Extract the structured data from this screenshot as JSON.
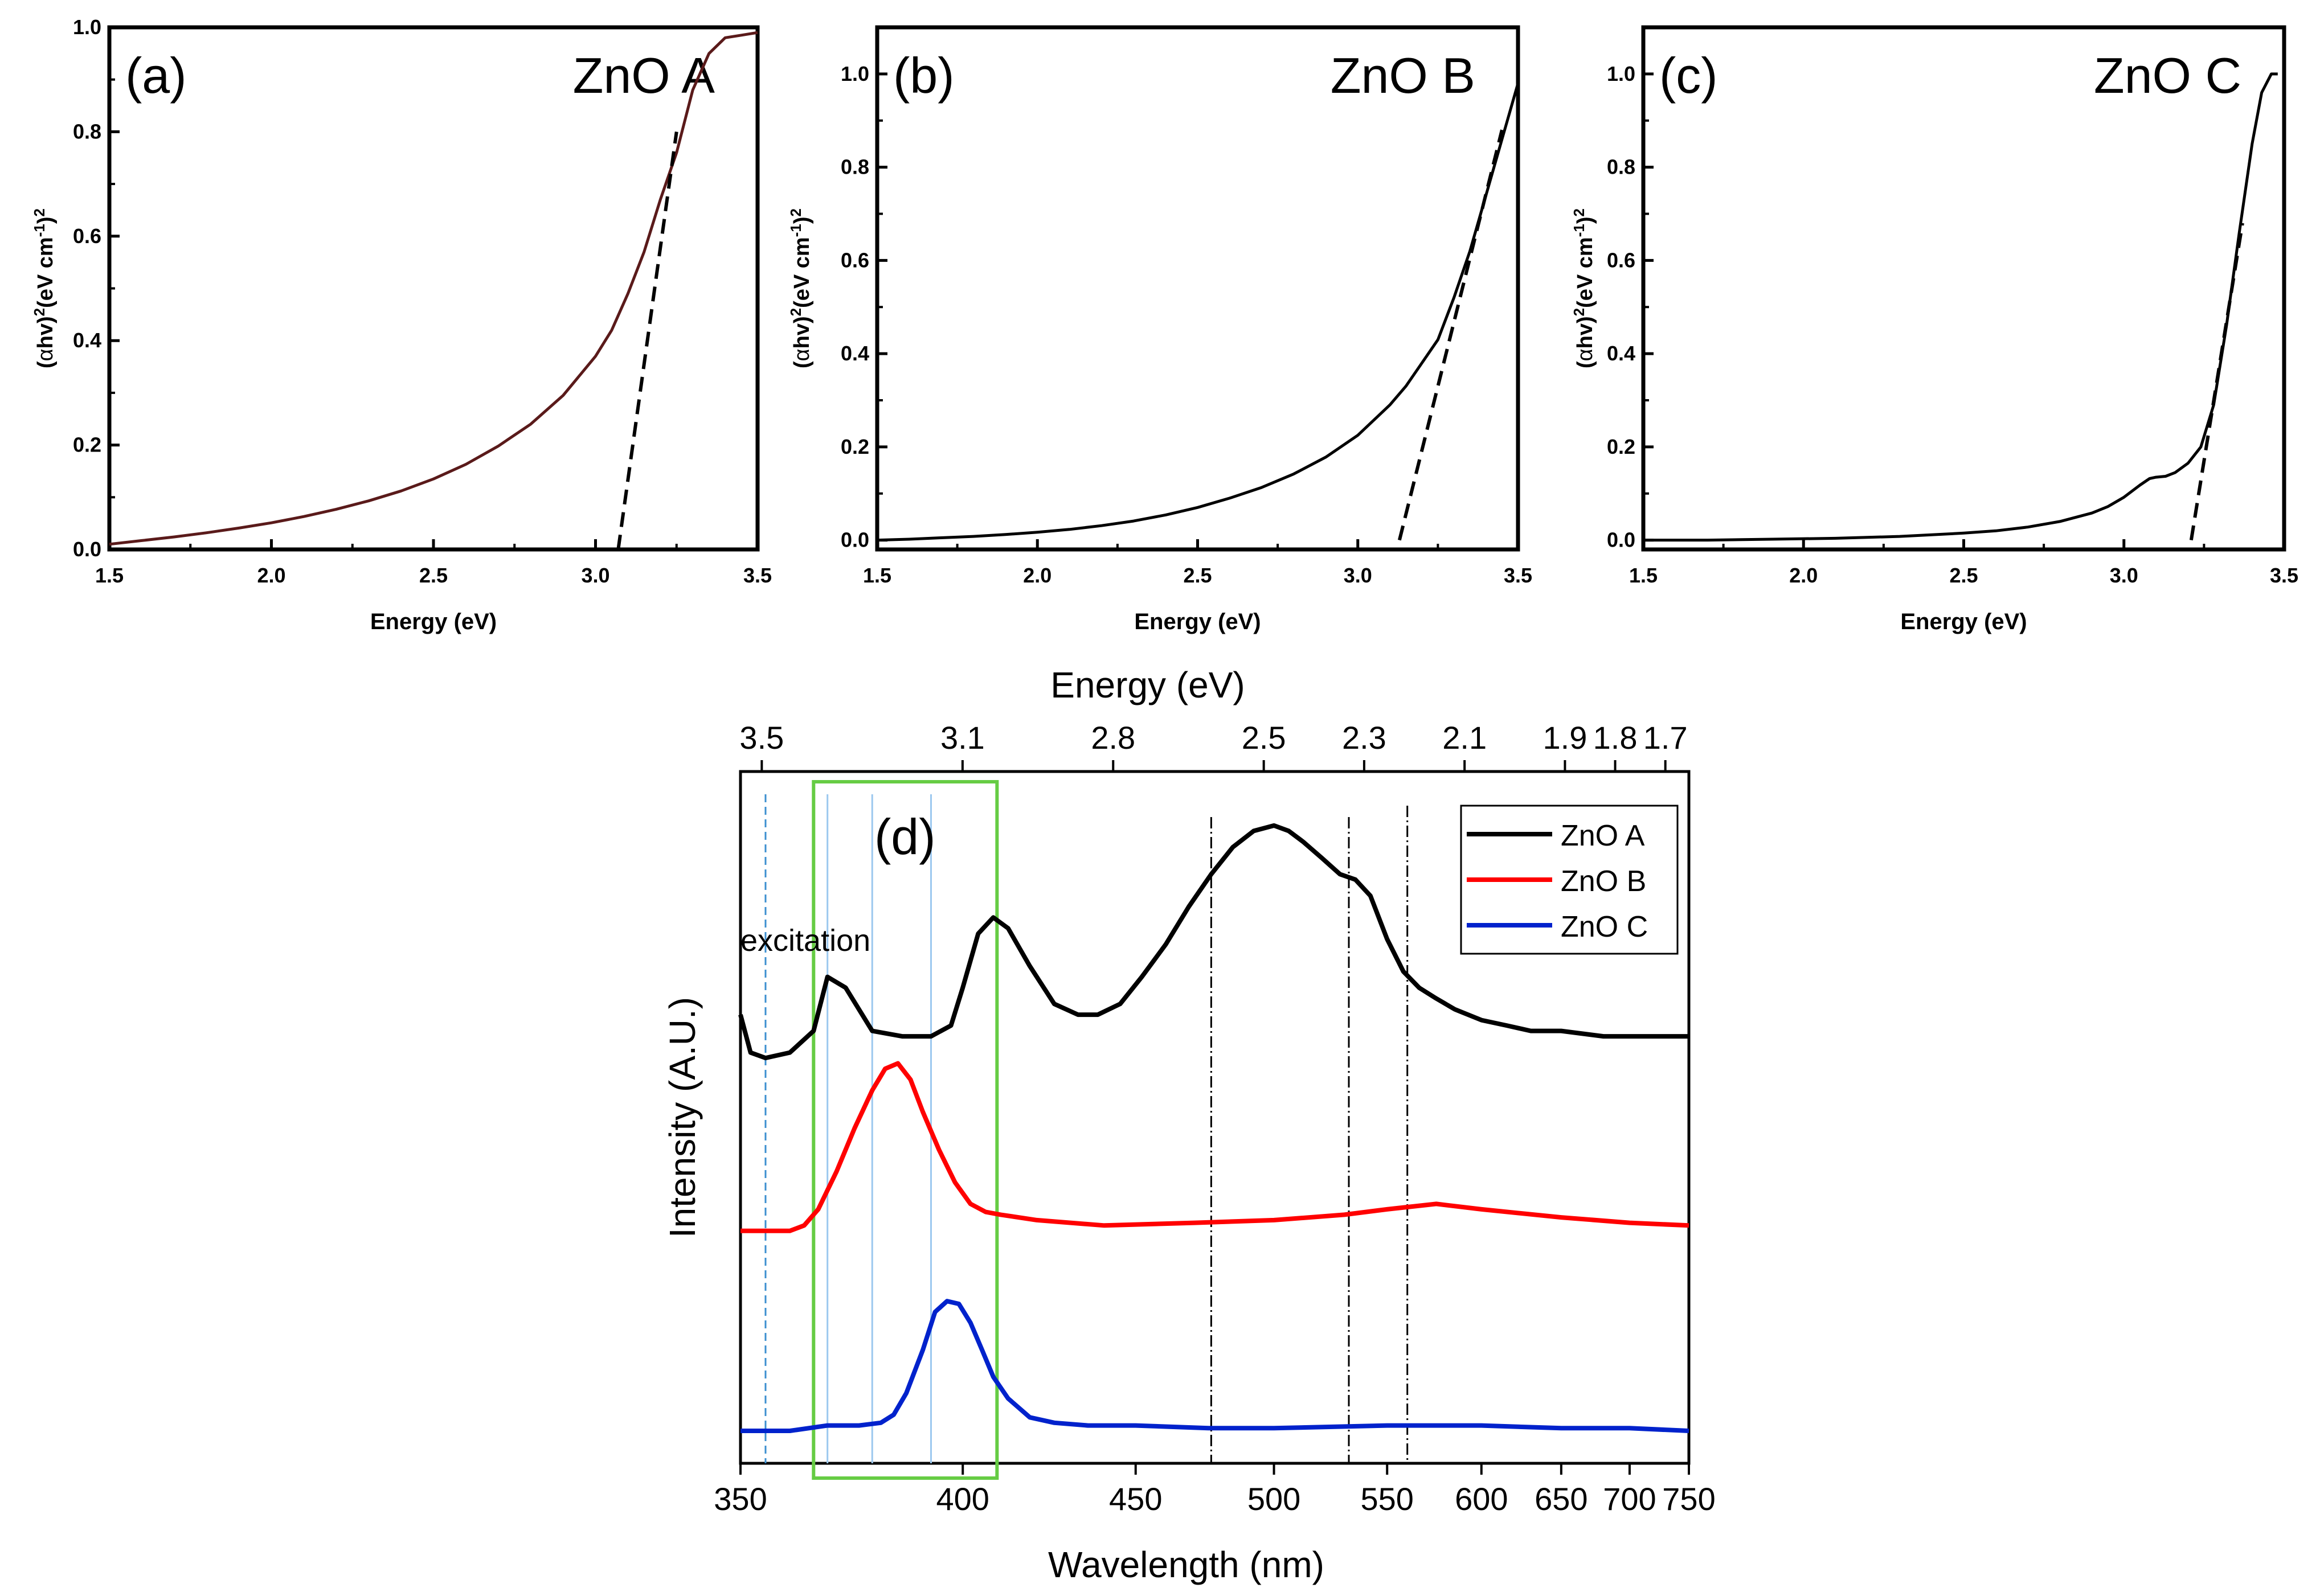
{
  "chart_data": [
    {
      "type": "line",
      "panel": "(a)",
      "title": "ZnO A",
      "xlabel": "Energy (eV)",
      "ylabel_parts": [
        "(",
        "α",
        "hv)",
        "2",
        "(eV cm",
        "-1",
        ")",
        "2"
      ],
      "xlim": [
        1.5,
        3.5
      ],
      "ylim": [
        0,
        1.0
      ],
      "xticks": [
        "1.5",
        "2.0",
        "2.5",
        "3.0",
        "3.5"
      ],
      "yticks": [
        "0.0",
        "0.2",
        "0.4",
        "0.6",
        "0.8",
        "1.0"
      ],
      "series": [
        {
          "name": "ZnO A",
          "color": "#5a1a1a",
          "x": [
            1.5,
            1.6,
            1.7,
            1.8,
            1.9,
            2.0,
            2.1,
            2.2,
            2.3,
            2.4,
            2.5,
            2.6,
            2.7,
            2.8,
            2.9,
            3.0,
            3.05,
            3.1,
            3.15,
            3.2,
            3.25,
            3.3,
            3.35,
            3.4,
            3.45,
            3.5
          ],
          "y": [
            0.01,
            0.017,
            0.024,
            0.032,
            0.041,
            0.051,
            0.063,
            0.077,
            0.093,
            0.112,
            0.135,
            0.163,
            0.198,
            0.24,
            0.295,
            0.37,
            0.42,
            0.49,
            0.57,
            0.67,
            0.76,
            0.88,
            0.95,
            0.98,
            0.985,
            0.99
          ]
        }
      ],
      "tangent": {
        "x": [
          3.07,
          3.25
        ],
        "y": [
          0.0,
          0.8
        ]
      }
    },
    {
      "type": "line",
      "panel": "(b)",
      "title": "ZnO B",
      "xlabel": "Energy (eV)",
      "ylabel_parts": [
        "(",
        "α",
        "hv)",
        "2",
        "(eV cm",
        "-1",
        ")",
        "2"
      ],
      "xlim": [
        1.5,
        3.5
      ],
      "ylim": [
        -0.02,
        1.1
      ],
      "xticks": [
        "1.5",
        "2.0",
        "2.5",
        "3.0",
        "3.5"
      ],
      "yticks": [
        "0.0",
        "0.2",
        "0.4",
        "0.6",
        "0.8",
        "1.0"
      ],
      "series": [
        {
          "name": "ZnO B",
          "color": "#000000",
          "x": [
            1.5,
            1.6,
            1.7,
            1.8,
            1.9,
            2.0,
            2.1,
            2.2,
            2.3,
            2.4,
            2.5,
            2.6,
            2.7,
            2.8,
            2.9,
            3.0,
            3.1,
            3.15,
            3.2,
            3.25,
            3.3,
            3.35,
            3.4,
            3.45,
            3.5
          ],
          "y": [
            0.0,
            0.002,
            0.005,
            0.008,
            0.012,
            0.017,
            0.023,
            0.031,
            0.041,
            0.054,
            0.07,
            0.09,
            0.113,
            0.142,
            0.178,
            0.225,
            0.29,
            0.33,
            0.38,
            0.43,
            0.52,
            0.62,
            0.74,
            0.86,
            0.98
          ]
        }
      ],
      "tangent": {
        "x": [
          3.13,
          3.45
        ],
        "y": [
          0.0,
          0.88
        ]
      }
    },
    {
      "type": "line",
      "panel": "(c)",
      "title": "ZnO C",
      "xlabel": "Energy (eV)",
      "ylabel_parts": [
        "(",
        "α",
        "hv)",
        "2",
        "(eV cm",
        "-1",
        ")",
        "2"
      ],
      "xlim": [
        1.5,
        3.5
      ],
      "ylim": [
        -0.02,
        1.1
      ],
      "xticks": [
        "1.5",
        "2.0",
        "2.5",
        "3.0",
        "3.5"
      ],
      "yticks": [
        "0.0",
        "0.2",
        "0.4",
        "0.6",
        "0.8",
        "1.0"
      ],
      "series": [
        {
          "name": "ZnO C",
          "color": "#000000",
          "x": [
            1.5,
            1.7,
            1.9,
            2.1,
            2.3,
            2.5,
            2.6,
            2.7,
            2.8,
            2.9,
            2.95,
            3.0,
            3.05,
            3.08,
            3.1,
            3.13,
            3.16,
            3.2,
            3.24,
            3.28,
            3.32,
            3.36,
            3.4,
            3.43,
            3.46,
            3.48
          ],
          "y": [
            0.0,
            0.0,
            0.002,
            0.004,
            0.008,
            0.015,
            0.02,
            0.028,
            0.04,
            0.058,
            0.072,
            0.092,
            0.118,
            0.132,
            0.135,
            0.137,
            0.145,
            0.165,
            0.2,
            0.29,
            0.46,
            0.66,
            0.85,
            0.96,
            1.0,
            1.0
          ]
        }
      ],
      "tangent": {
        "x": [
          3.21,
          3.37
        ],
        "y": [
          0.0,
          0.68
        ]
      }
    },
    {
      "type": "line",
      "panel": "(d)",
      "xlabel": "Wavelength (nm)",
      "ylabel": "Intensity (A.U.)",
      "top_xlabel": "Energy (eV)",
      "xlim": [
        350,
        750
      ],
      "x_scale": "energy-linear",
      "xticks": [
        350,
        400,
        450,
        500,
        550,
        600,
        650,
        700,
        750
      ],
      "xtick_labels": [
        "350",
        "400",
        "450",
        "500",
        "550",
        "600",
        "650",
        "700",
        "750"
      ],
      "top_ticks": [
        3.5,
        3.1,
        2.8,
        2.5,
        2.3,
        2.1,
        1.9,
        1.8,
        1.7
      ],
      "top_tick_labels": [
        "3.5",
        "3.1",
        "2.8",
        "2.5",
        "2.3",
        "2.1",
        "1.9",
        "1.8",
        "1.7"
      ],
      "annotation": "excitation",
      "panel_label": "(d)",
      "excitation_line_nm": 355,
      "blue_ref_lines_nm": [
        368,
        378,
        392
      ],
      "dashdot_lines_nm": [
        476,
        532,
        560
      ],
      "green_box_nm": [
        365,
        409
      ],
      "legend": [
        "ZnO A",
        "ZnO B",
        "ZnO C"
      ],
      "series": [
        {
          "name": "ZnO A",
          "color": "#000000",
          "x": [
            350,
            352,
            355,
            360,
            365,
            368,
            372,
            378,
            385,
            392,
            397,
            400,
            404,
            408,
            412,
            418,
            425,
            432,
            438,
            445,
            452,
            460,
            468,
            476,
            484,
            492,
            500,
            506,
            512,
            520,
            528,
            535,
            542,
            550,
            558,
            566,
            575,
            585,
            600,
            615,
            630,
            650,
            680,
            710,
            750
          ],
          "y": [
            0.55,
            0.48,
            0.47,
            0.48,
            0.52,
            0.62,
            0.6,
            0.52,
            0.51,
            0.51,
            0.53,
            0.6,
            0.7,
            0.73,
            0.71,
            0.64,
            0.57,
            0.55,
            0.55,
            0.57,
            0.62,
            0.68,
            0.75,
            0.81,
            0.86,
            0.89,
            0.9,
            0.89,
            0.87,
            0.84,
            0.81,
            0.8,
            0.77,
            0.69,
            0.63,
            0.6,
            0.58,
            0.56,
            0.54,
            0.53,
            0.52,
            0.52,
            0.51,
            0.51,
            0.51
          ]
        },
        {
          "name": "ZnO B",
          "color": "#ff0000",
          "x": [
            350,
            355,
            360,
            363,
            366,
            370,
            374,
            378,
            381,
            384,
            387,
            390,
            394,
            398,
            402,
            406,
            410,
            420,
            440,
            470,
            500,
            530,
            550,
            575,
            600,
            650,
            700,
            750
          ],
          "y": [
            0.15,
            0.15,
            0.15,
            0.16,
            0.19,
            0.26,
            0.34,
            0.41,
            0.45,
            0.46,
            0.43,
            0.37,
            0.3,
            0.24,
            0.2,
            0.185,
            0.18,
            0.17,
            0.16,
            0.165,
            0.17,
            0.18,
            0.19,
            0.2,
            0.19,
            0.175,
            0.165,
            0.16
          ]
        },
        {
          "name": "ZnO C",
          "color": "#0022cc",
          "x": [
            350,
            360,
            368,
            375,
            380,
            383,
            386,
            390,
            393,
            396,
            399,
            402,
            405,
            408,
            412,
            418,
            425,
            435,
            450,
            475,
            500,
            550,
            600,
            650,
            700,
            750
          ],
          "y": [
            -0.22,
            -0.22,
            -0.21,
            -0.21,
            -0.205,
            -0.19,
            -0.15,
            -0.07,
            0.0,
            0.02,
            0.015,
            -0.02,
            -0.07,
            -0.12,
            -0.16,
            -0.195,
            -0.205,
            -0.21,
            -0.21,
            -0.215,
            -0.215,
            -0.21,
            -0.21,
            -0.215,
            -0.215,
            -0.22
          ]
        }
      ]
    }
  ]
}
